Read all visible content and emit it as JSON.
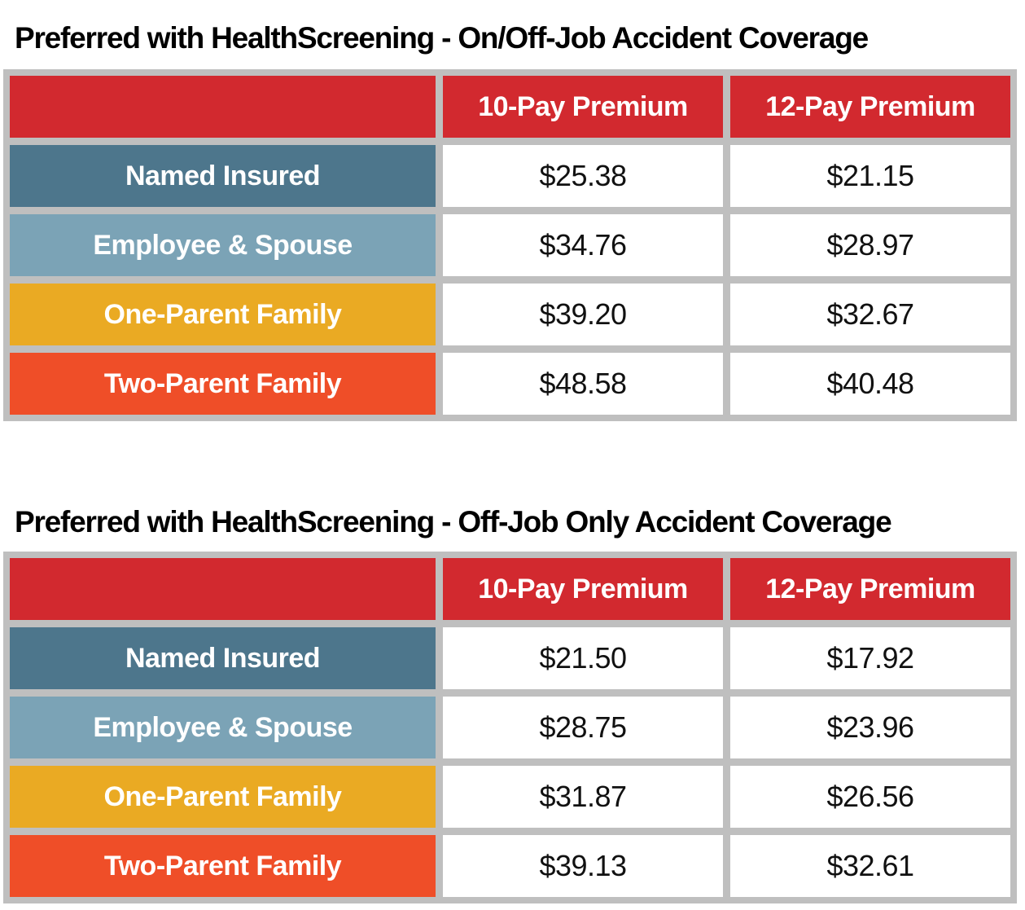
{
  "colors": {
    "header_red": "#d2292f",
    "row_named_insured": "#4d768c",
    "row_employee_spouse": "#7ba3b6",
    "row_one_parent": "#eaaa23",
    "row_two_parent": "#ef4e28",
    "grid_gray": "#bfbfbf",
    "value_text": "#111111",
    "title_text": "#000000"
  },
  "tables": [
    {
      "title": "Preferred with HealthScreening - On/Off-Job Accident Coverage",
      "columns": [
        "",
        "10-Pay Premium",
        "12-Pay Premium"
      ],
      "rows": [
        {
          "label": "Named Insured",
          "values": [
            "$25.38",
            "$21.15"
          ]
        },
        {
          "label": "Employee & Spouse",
          "values": [
            "$34.76",
            "$28.97"
          ]
        },
        {
          "label": "One-Parent Family",
          "values": [
            "$39.20",
            "$32.67"
          ]
        },
        {
          "label": "Two-Parent Family",
          "values": [
            "$48.58",
            "$40.48"
          ]
        }
      ]
    },
    {
      "title": "Preferred with HealthScreening - Off-Job Only Accident Coverage",
      "columns": [
        "",
        "10-Pay Premium",
        "12-Pay Premium"
      ],
      "rows": [
        {
          "label": "Named Insured",
          "values": [
            "$21.50",
            "$17.92"
          ]
        },
        {
          "label": "Employee & Spouse",
          "values": [
            "$28.75",
            "$23.96"
          ]
        },
        {
          "label": "One-Parent Family",
          "values": [
            "$31.87",
            "$26.56"
          ]
        },
        {
          "label": "Two-Parent Family",
          "values": [
            "$39.13",
            "$32.61"
          ]
        }
      ]
    }
  ]
}
